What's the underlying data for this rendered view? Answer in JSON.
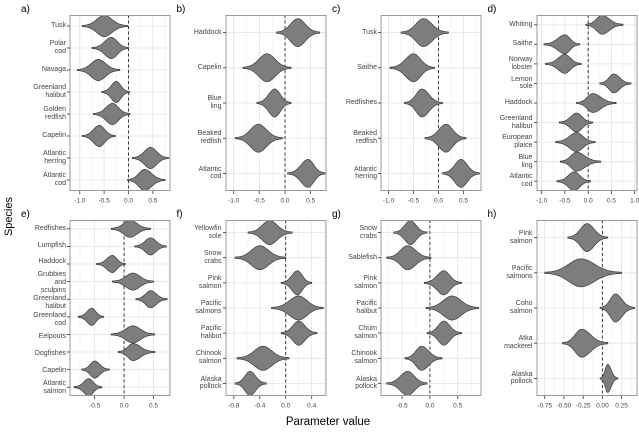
{
  "xlabel": "Parameter value",
  "ylabel": "Species",
  "ref_line_x": 0,
  "colors": {
    "violin_fill": "#7d7d7d",
    "violin_stroke": "#3c3c3c",
    "grid_major": "#e4e4e4",
    "grid_minor": "#f1f1f1",
    "panel_border": "#9a9a9a",
    "ref_line": "#3a3a3a",
    "tick_mark": "#333333",
    "text": "#444444"
  },
  "chart_data": [
    {
      "type": "violin",
      "panel": "a)",
      "x_range": [
        -1.2,
        0.85
      ],
      "x_ticks": [
        -1.0,
        -0.5,
        0.0,
        0.5
      ],
      "x_tick_labels": [
        "-1.0",
        "-0.5",
        "0.0",
        "0.5"
      ],
      "species": [
        "Tusk",
        "Polar\ncod",
        "Navaga",
        "Greenland\nhalibut",
        "Golden\nredfish",
        "Capelin",
        "Atlantic\nherring",
        "Atlantic\ncod"
      ],
      "violins": [
        {
          "c": -0.5,
          "lo": -0.95,
          "hi": -0.02
        },
        {
          "c": -0.35,
          "lo": -0.75,
          "hi": 0.0
        },
        {
          "c": -0.62,
          "lo": -1.05,
          "hi": -0.18
        },
        {
          "c": -0.25,
          "lo": -0.55,
          "hi": 0.02
        },
        {
          "c": -0.33,
          "lo": -0.72,
          "hi": 0.03
        },
        {
          "c": -0.6,
          "lo": -0.95,
          "hi": -0.27
        },
        {
          "c": 0.45,
          "lo": 0.08,
          "hi": 0.82
        },
        {
          "c": 0.33,
          "lo": -0.02,
          "hi": 0.75
        }
      ]
    },
    {
      "type": "violin",
      "panel": "b)",
      "x_range": [
        -1.15,
        0.8
      ],
      "x_ticks": [
        -1.0,
        -0.5,
        0.0,
        0.5
      ],
      "x_tick_labels": [
        "-1.0",
        "-0.5",
        "0.0",
        "0.5"
      ],
      "species": [
        "Haddock",
        "Capelin",
        "Blue\nling",
        "Beaked\nredfish",
        "Atlantic\ncod"
      ],
      "violins": [
        {
          "c": 0.25,
          "lo": -0.17,
          "hi": 0.68
        },
        {
          "c": -0.35,
          "lo": -0.82,
          "hi": 0.12
        },
        {
          "c": -0.2,
          "lo": -0.55,
          "hi": 0.12
        },
        {
          "c": -0.52,
          "lo": -0.97,
          "hi": -0.05
        },
        {
          "c": 0.45,
          "lo": 0.05,
          "hi": 0.78
        }
      ]
    },
    {
      "type": "violin",
      "panel": "c)",
      "x_range": [
        -1.15,
        0.85
      ],
      "x_ticks": [
        -1.0,
        -0.5,
        0.0,
        0.5
      ],
      "x_tick_labels": [
        "-1.0",
        "-0.5",
        "0.0",
        "0.5"
      ],
      "species": [
        "Tusk",
        "Saithe",
        "Redfishes",
        "Beaked\nredfish",
        "Atlantic\nherring"
      ],
      "violins": [
        {
          "c": -0.3,
          "lo": -0.75,
          "hi": 0.2
        },
        {
          "c": -0.5,
          "lo": -0.97,
          "hi": -0.08
        },
        {
          "c": -0.33,
          "lo": -0.68,
          "hi": 0.08
        },
        {
          "c": 0.15,
          "lo": -0.27,
          "hi": 0.55
        },
        {
          "c": 0.45,
          "lo": 0.08,
          "hi": 0.82
        }
      ]
    },
    {
      "type": "violin",
      "panel": "d)",
      "x_range": [
        -1.1,
        1.05
      ],
      "x_ticks": [
        -1.0,
        -0.5,
        0.0,
        0.5,
        1.0
      ],
      "x_tick_labels": [
        "-1.0",
        "-0.5",
        "0.0",
        "0.5",
        "1.0"
      ],
      "species": [
        "Whiting",
        "Saithe",
        "Norway\nlobster",
        "Lemon\nsole",
        "Haddock",
        "Greenland\nhalibut",
        "European\nplaice",
        "Blue\nling",
        "Atlantic\ncod"
      ],
      "violins": [
        {
          "c": 0.3,
          "lo": -0.05,
          "hi": 0.75
        },
        {
          "c": -0.5,
          "lo": -0.95,
          "hi": -0.18
        },
        {
          "c": -0.5,
          "lo": -0.92,
          "hi": -0.15
        },
        {
          "c": 0.55,
          "lo": 0.25,
          "hi": 0.92
        },
        {
          "c": 0.1,
          "lo": -0.25,
          "hi": 0.6
        },
        {
          "c": -0.25,
          "lo": -0.62,
          "hi": 0.1
        },
        {
          "c": -0.25,
          "lo": -0.7,
          "hi": 0.15
        },
        {
          "c": -0.25,
          "lo": -0.6,
          "hi": 0.27
        },
        {
          "c": -0.3,
          "lo": -0.67,
          "hi": 0.05
        }
      ]
    },
    {
      "type": "violin",
      "panel": "e)",
      "x_range": [
        -0.92,
        0.78
      ],
      "x_ticks": [
        -0.5,
        0.0,
        0.5
      ],
      "x_tick_labels": [
        "-0.5",
        "0.0",
        "0.5"
      ],
      "species": [
        "Redfishes",
        "Lumpfish",
        "Haddock",
        "Grubbies\nand\nsculpins",
        "Greenland\nhalibut",
        "Greenland\ncod",
        "Eelpouts",
        "Dogfishes",
        "Capelin",
        "Atlantic\nsalmon"
      ],
      "violins": [
        {
          "c": 0.1,
          "lo": -0.22,
          "hi": 0.45
        },
        {
          "c": 0.45,
          "lo": 0.18,
          "hi": 0.72
        },
        {
          "c": -0.2,
          "lo": -0.47,
          "hi": 0.02
        },
        {
          "c": 0.15,
          "lo": -0.2,
          "hi": 0.5
        },
        {
          "c": 0.45,
          "lo": 0.2,
          "hi": 0.73
        },
        {
          "c": -0.55,
          "lo": -0.78,
          "hi": -0.35
        },
        {
          "c": 0.15,
          "lo": -0.22,
          "hi": 0.52
        },
        {
          "c": 0.15,
          "lo": -0.1,
          "hi": 0.52
        },
        {
          "c": -0.5,
          "lo": -0.72,
          "hi": -0.25
        },
        {
          "c": -0.6,
          "lo": -0.85,
          "hi": -0.38
        }
      ]
    },
    {
      "type": "violin",
      "panel": "f)",
      "x_range": [
        -0.92,
        0.62
      ],
      "x_ticks": [
        -0.8,
        -0.4,
        0.0,
        0.4
      ],
      "x_tick_labels": [
        "-0.8",
        "-0.4",
        "0.0",
        "0.4"
      ],
      "species": [
        "Yellowfin\nsole",
        "Snow\ncrabs",
        "Pink\nsalmon",
        "Pacific\nsalmons",
        "Pacific\nhalibut",
        "Chinook\nsalmon",
        "Alaska\npollock"
      ],
      "violins": [
        {
          "c": -0.25,
          "lo": -0.58,
          "hi": 0.1
        },
        {
          "c": -0.4,
          "lo": -0.78,
          "hi": 0.0
        },
        {
          "c": 0.18,
          "lo": -0.07,
          "hi": 0.4
        },
        {
          "c": 0.2,
          "lo": -0.22,
          "hi": 0.58
        },
        {
          "c": 0.2,
          "lo": -0.07,
          "hi": 0.48
        },
        {
          "c": -0.35,
          "lo": -0.75,
          "hi": 0.05
        },
        {
          "c": -0.55,
          "lo": -0.78,
          "hi": -0.3
        }
      ]
    },
    {
      "type": "violin",
      "panel": "g)",
      "x_range": [
        -0.88,
        0.92
      ],
      "x_ticks": [
        -0.5,
        0.0,
        0.5
      ],
      "x_tick_labels": [
        "-0.5",
        "0.0",
        "0.5"
      ],
      "species": [
        "Snow\ncrabs",
        "Sablefish",
        "Pink\nsalmon",
        "Pacific\nhalibut",
        "Chum\nsalmon",
        "Chinook\nsalmon",
        "Alaska\npollock"
      ],
      "violins": [
        {
          "c": -0.35,
          "lo": -0.65,
          "hi": -0.05
        },
        {
          "c": -0.4,
          "lo": -0.78,
          "hi": 0.02
        },
        {
          "c": 0.25,
          "lo": -0.1,
          "hi": 0.57
        },
        {
          "c": 0.4,
          "lo": -0.07,
          "hi": 0.88
        },
        {
          "c": 0.25,
          "lo": -0.05,
          "hi": 0.57
        },
        {
          "c": -0.15,
          "lo": -0.45,
          "hi": 0.22
        },
        {
          "c": -0.4,
          "lo": -0.78,
          "hi": -0.05
        }
      ]
    },
    {
      "type": "violin",
      "panel": "h)",
      "x_range": [
        -0.85,
        0.45
      ],
      "x_ticks": [
        -0.75,
        -0.5,
        -0.25,
        0.0,
        0.25
      ],
      "x_tick_labels": [
        "-0.75",
        "-0.50",
        "-0.25",
        "0.00",
        "0.25"
      ],
      "species": [
        "Pink\nsalmon",
        "Pacific\nsalmons",
        "Coho\nsalmon",
        "Atka\nmackerel",
        "Alaska\npollock"
      ],
      "violins": [
        {
          "c": -0.2,
          "lo": -0.45,
          "hi": 0.07
        },
        {
          "c": -0.28,
          "lo": -0.75,
          "hi": 0.25
        },
        {
          "c": 0.17,
          "lo": -0.03,
          "hi": 0.42
        },
        {
          "c": -0.27,
          "lo": -0.52,
          "hi": 0.07
        },
        {
          "c": 0.07,
          "lo": -0.03,
          "hi": 0.2
        }
      ]
    }
  ]
}
